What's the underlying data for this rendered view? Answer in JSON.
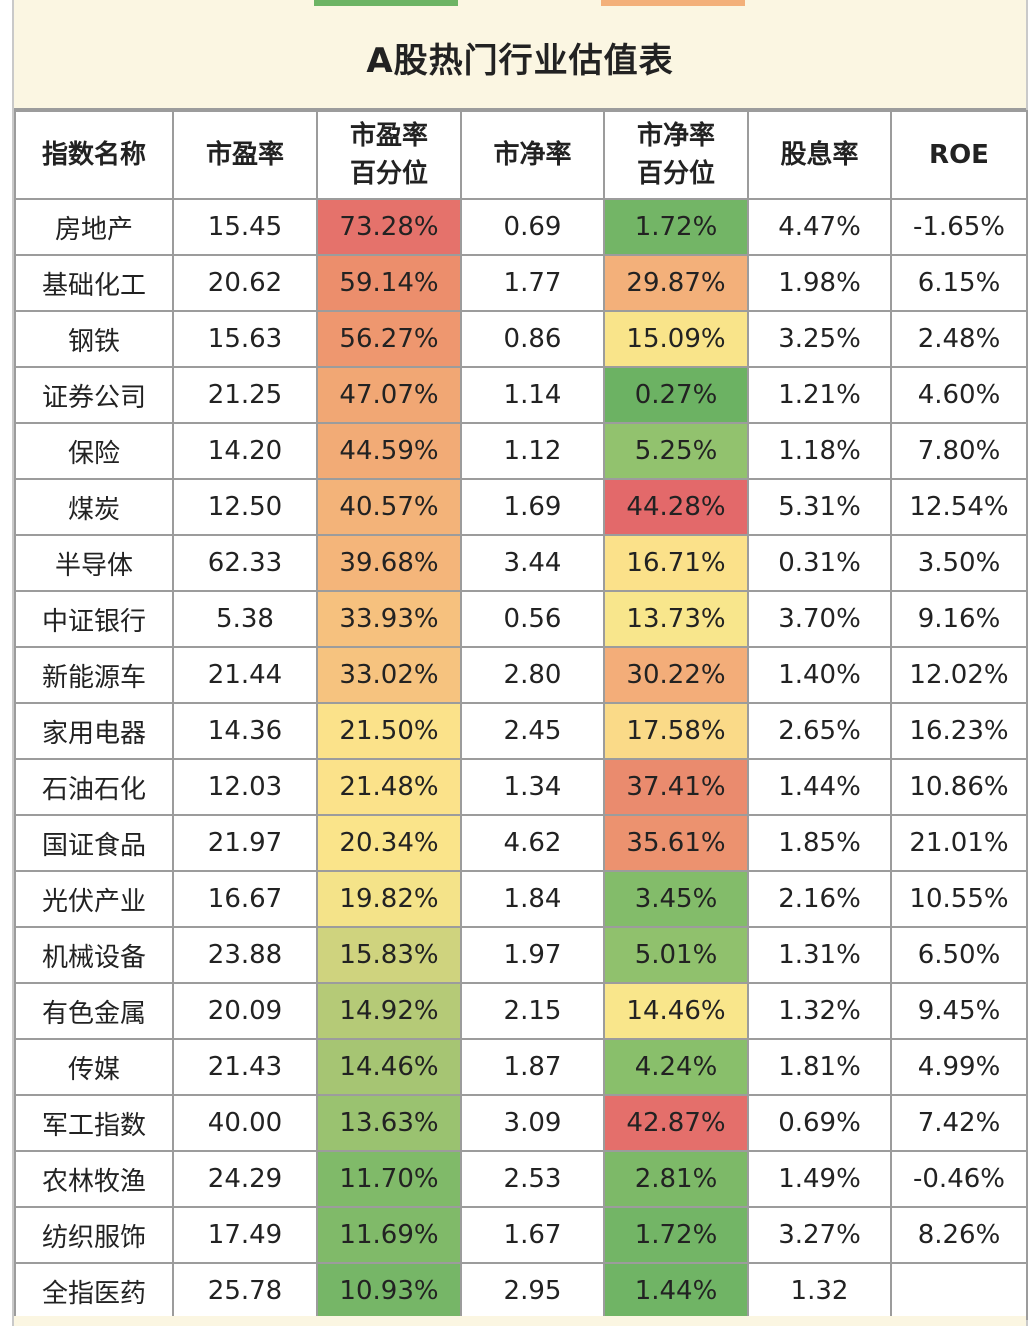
{
  "title": "A股热门行业估值表",
  "headers": [
    "指数名称",
    "市盈率",
    "市盈率\n百分位",
    "市净率",
    "市净率\n百分位",
    "股息率",
    "ROE"
  ],
  "header_lines": [
    [
      "指数名称"
    ],
    [
      "市盈率"
    ],
    [
      "市盈率",
      "百分位"
    ],
    [
      "市净率"
    ],
    [
      "市净率",
      "百分位"
    ],
    [
      "股息率"
    ],
    [
      "ROE"
    ]
  ],
  "rows": [
    {
      "name": "房地产",
      "pe": "15.45",
      "pe_pct": "73.28%",
      "pb": "0.69",
      "pb_pct": "1.72%",
      "div": "4.47%",
      "roe": "-1.65%",
      "pe_color": "#e5726b",
      "pb_color": "#73b566"
    },
    {
      "name": "基础化工",
      "pe": "20.62",
      "pe_pct": "59.14%",
      "pb": "1.77",
      "pb_pct": "29.87%",
      "div": "1.98%",
      "roe": "6.15%",
      "pe_color": "#ec8e6c",
      "pb_color": "#f3b07a"
    },
    {
      "name": "钢铁",
      "pe": "15.63",
      "pe_pct": "56.27%",
      "pb": "0.86",
      "pb_pct": "15.09%",
      "div": "3.25%",
      "roe": "2.48%",
      "pe_color": "#ee976f",
      "pb_color": "#f9e48a"
    },
    {
      "name": "证券公司",
      "pe": "21.25",
      "pe_pct": "47.07%",
      "pb": "1.14",
      "pb_pct": "0.27%",
      "div": "1.21%",
      "roe": "4.60%",
      "pe_color": "#f1a774",
      "pb_color": "#6cb263"
    },
    {
      "name": "保险",
      "pe": "14.20",
      "pe_pct": "44.59%",
      "pb": "1.12",
      "pb_pct": "5.25%",
      "div": "1.18%",
      "roe": "7.80%",
      "pe_color": "#f2ab76",
      "pb_color": "#92c26e"
    },
    {
      "name": "煤炭",
      "pe": "12.50",
      "pe_pct": "40.57%",
      "pb": "1.69",
      "pb_pct": "44.28%",
      "div": "5.31%",
      "roe": "12.54%",
      "pe_color": "#f3b379",
      "pb_color": "#e3696a"
    },
    {
      "name": "半导体",
      "pe": "62.33",
      "pe_pct": "39.68%",
      "pb": "3.44",
      "pb_pct": "16.71%",
      "div": "0.31%",
      "roe": "3.50%",
      "pe_color": "#f4b57a",
      "pb_color": "#fbe18a"
    },
    {
      "name": "中证银行",
      "pe": "5.38",
      "pe_pct": "33.93%",
      "pb": "0.56",
      "pb_pct": "13.73%",
      "div": "3.70%",
      "roe": "9.16%",
      "pe_color": "#f6c17e",
      "pb_color": "#f8e68c"
    },
    {
      "name": "新能源车",
      "pe": "21.44",
      "pe_pct": "33.02%",
      "pb": "2.80",
      "pb_pct": "30.22%",
      "div": "1.40%",
      "roe": "12.02%",
      "pe_color": "#f6c37f",
      "pb_color": "#f3ad79"
    },
    {
      "name": "家用电器",
      "pe": "14.36",
      "pe_pct": "21.50%",
      "pb": "2.45",
      "pb_pct": "17.58%",
      "div": "2.65%",
      "roe": "16.23%",
      "pe_color": "#fbe28a",
      "pb_color": "#fada88"
    },
    {
      "name": "石油石化",
      "pe": "12.03",
      "pe_pct": "21.48%",
      "pb": "1.34",
      "pb_pct": "37.41%",
      "div": "1.44%",
      "roe": "10.86%",
      "pe_color": "#fbe28a",
      "pb_color": "#ea8b6e"
    },
    {
      "name": "国证食品",
      "pe": "21.97",
      "pe_pct": "20.34%",
      "pb": "4.62",
      "pb_pct": "35.61%",
      "div": "1.85%",
      "roe": "21.01%",
      "pe_color": "#fae48a",
      "pb_color": "#ec926f"
    },
    {
      "name": "光伏产业",
      "pe": "16.67",
      "pe_pct": "19.82%",
      "pb": "1.84",
      "pb_pct": "3.45%",
      "div": "2.16%",
      "roe": "10.55%",
      "pe_color": "#f4e389",
      "pb_color": "#83bc6a"
    },
    {
      "name": "机械设备",
      "pe": "23.88",
      "pe_pct": "15.83%",
      "pb": "1.97",
      "pb_pct": "5.01%",
      "div": "1.31%",
      "roe": "6.50%",
      "pe_color": "#cfd37e",
      "pb_color": "#90c16d"
    },
    {
      "name": "有色金属",
      "pe": "20.09",
      "pe_pct": "14.92%",
      "pb": "2.15",
      "pb_pct": "14.46%",
      "div": "1.32%",
      "roe": "9.45%",
      "pe_color": "#b5ca77",
      "pb_color": "#f9e68b"
    },
    {
      "name": "传媒",
      "pe": "21.43",
      "pe_pct": "14.46%",
      "pb": "1.87",
      "pb_pct": "4.24%",
      "div": "1.81%",
      "roe": "4.99%",
      "pe_color": "#a6c573",
      "pb_color": "#89bf6b"
    },
    {
      "name": "军工指数",
      "pe": "40.00",
      "pe_pct": "13.63%",
      "pb": "3.09",
      "pb_pct": "42.87%",
      "div": "0.69%",
      "roe": "7.42%",
      "pe_color": "#9ac270",
      "pb_color": "#e46f6b"
    },
    {
      "name": "农林牧渔",
      "pe": "24.29",
      "pe_pct": "11.70%",
      "pb": "2.53",
      "pb_pct": "2.81%",
      "div": "1.49%",
      "roe": "-0.46%",
      "pe_color": "#80ba69",
      "pb_color": "#7db968"
    },
    {
      "name": "纺织服饰",
      "pe": "17.49",
      "pe_pct": "11.69%",
      "pb": "1.67",
      "pb_pct": "1.72%",
      "div": "3.27%",
      "roe": "8.26%",
      "pe_color": "#80ba69",
      "pb_color": "#73b566"
    },
    {
      "name": "全指医药",
      "pe": "25.78",
      "pe_pct": "10.93%",
      "pb": "2.95",
      "pb_pct": "1.44%",
      "div": "1.32",
      "roe": "",
      "pe_color": "#76b667",
      "pb_color": "#70b465"
    }
  ],
  "top_strip_colors": [
    "#fbf6e2",
    "#6db464",
    "#fbf6e2",
    "#f3b07a",
    "#fbf6e2"
  ]
}
